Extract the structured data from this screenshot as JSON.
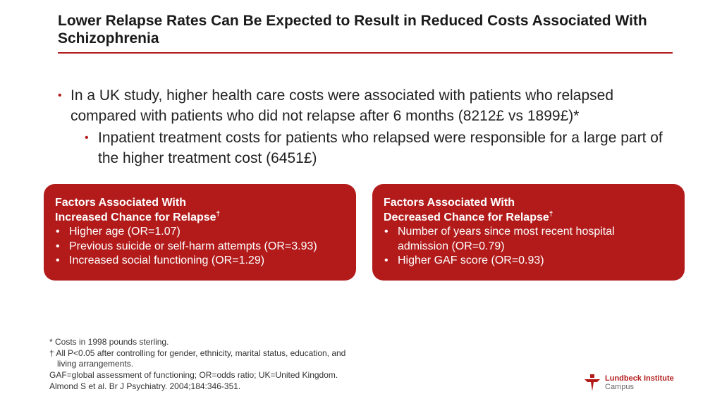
{
  "title": "Lower Relapse Rates Can Be Expected to Result in Reduced Costs Associated With Schizophrenia",
  "bullets": {
    "main": "In a UK study, higher health care costs were associated with patients who relapsed compared with patients who did not relapse after 6 months (8212£ vs 1899£)*",
    "sub": "Inpatient treatment costs for patients who relapsed were responsible for a large part of the higher treatment cost (6451£)"
  },
  "boxes": {
    "increased": {
      "heading_line1": "Factors Associated With",
      "heading_line2": "Increased Chance for Relapse",
      "mark": "†",
      "items": [
        "Higher age (OR=1.07)",
        "Previous suicide or self-harm attempts (OR=3.93)",
        "Increased social functioning (OR=1.29)"
      ]
    },
    "decreased": {
      "heading_line1": "Factors Associated With",
      "heading_line2": "Decreased Chance for Relapse",
      "mark": "†",
      "items": [
        "Number of years since most recent hospital admission (OR=0.79)",
        "Higher GAF score (OR=0.93)"
      ]
    }
  },
  "footnotes": {
    "costs": "* Costs in 1998 pounds sterling.",
    "pvalue": "† All P<0.05 after controlling for gender, ethnicity, marital status, education, and",
    "pvalue_cont": "living arrangements.",
    "abbrev": "GAF=global assessment of functioning; OR=odds ratio; UK=United Kingdom.",
    "reference": "Almond S et al. Br J Psychiatry. 2004;184:346-351."
  },
  "logo": {
    "line1": "Lundbeck Institute",
    "line2": "Campus"
  },
  "colors": {
    "accent": "#b31b1b"
  }
}
